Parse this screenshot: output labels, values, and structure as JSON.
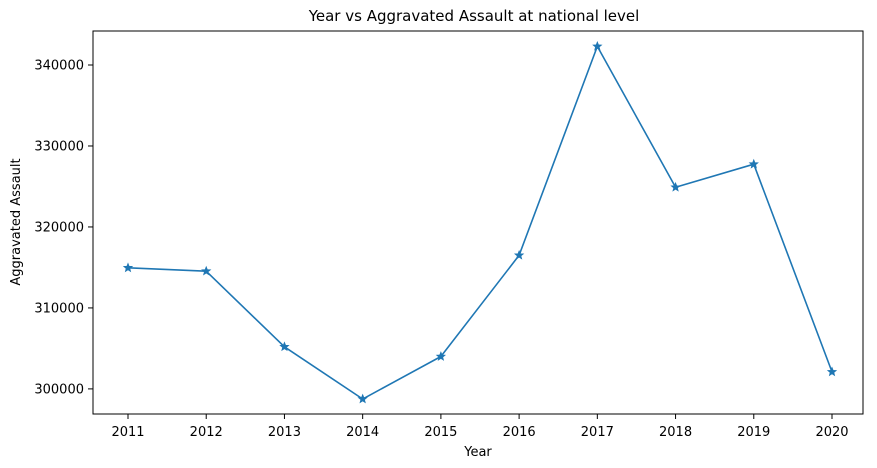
{
  "chart_data": {
    "type": "line",
    "title": "Year vs Aggravated Assault at national level",
    "xlabel": "Year",
    "ylabel": "Aggravated Assault",
    "x": [
      "2011",
      "2012",
      "2013",
      "2014",
      "2015",
      "2016",
      "2017",
      "2018",
      "2019",
      "2020"
    ],
    "series": [
      {
        "values": [
          314950,
          314540,
          305200,
          298750,
          304000,
          316500,
          342300,
          324900,
          327750,
          302100
        ]
      }
    ],
    "yticks": [
      300000,
      310000,
      320000,
      330000,
      340000
    ],
    "ylim": [
      296900,
      344200
    ],
    "marker": "star",
    "grid": false,
    "legend": "none",
    "colors": {
      "line": "#1f77b4",
      "axes": "#000000"
    }
  }
}
